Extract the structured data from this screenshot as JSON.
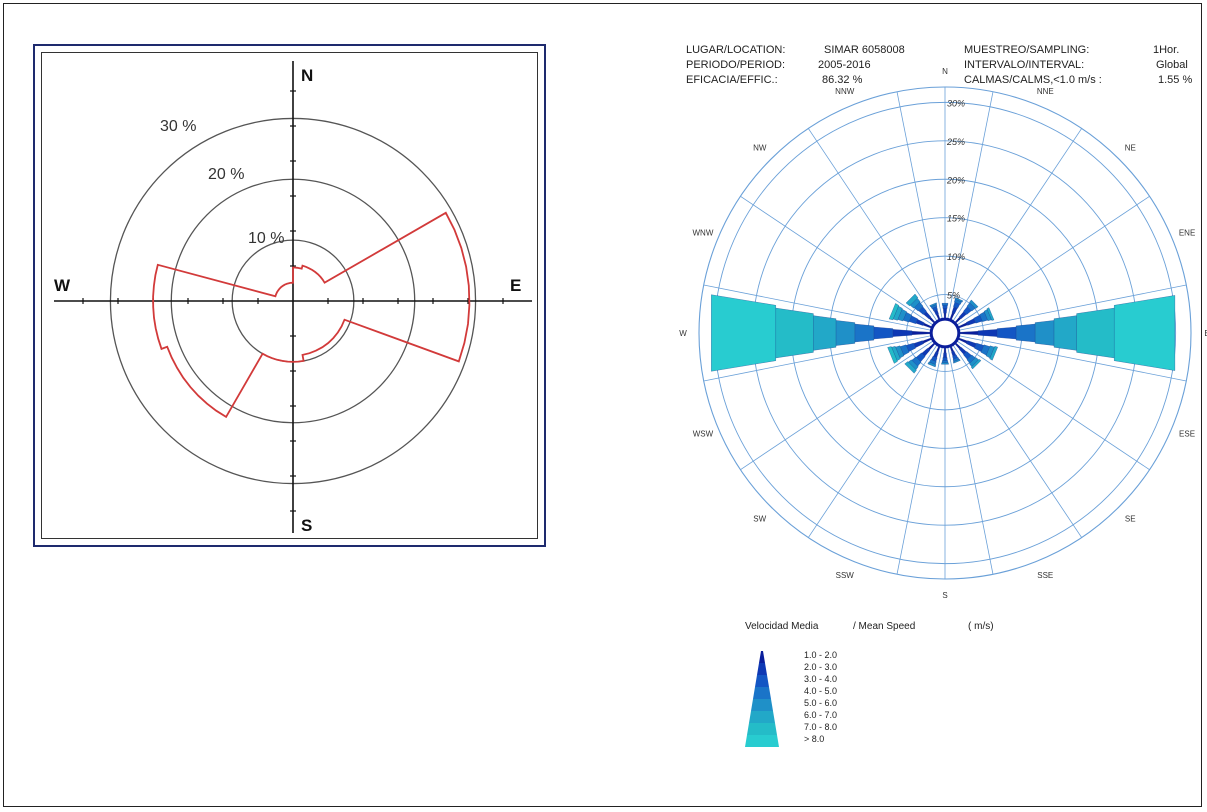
{
  "chart_data": [
    {
      "type": "polar-line",
      "cardinals": [
        "N",
        "E",
        "S",
        "W"
      ],
      "ring_labels": [
        "30 %",
        "20 %",
        "10 %"
      ],
      "ring_values": [
        30,
        20,
        10
      ],
      "rmax": 35,
      "series_color": "#d23a3a",
      "sectors": [
        {
          "from": -20,
          "to": 0,
          "value": 3
        },
        {
          "from": 0,
          "to": 15,
          "value": 5.5
        },
        {
          "from": 15,
          "to": 60,
          "value": 6
        },
        {
          "from": 60,
          "to": 110,
          "value": 29
        },
        {
          "from": 110,
          "to": 170,
          "value": 9
        },
        {
          "from": 170,
          "to": 210,
          "value": 10
        },
        {
          "from": 210,
          "to": 250,
          "value": 22
        },
        {
          "from": 250,
          "to": 285,
          "value": 23
        },
        {
          "from": 285,
          "to": 340,
          "value": 3
        }
      ]
    },
    {
      "type": "wind-rose",
      "directions": [
        "N",
        "NNE",
        "NE",
        "ENE",
        "E",
        "ESE",
        "SE",
        "SSE",
        "S",
        "SSW",
        "SW",
        "WSW",
        "W",
        "WNW",
        "NW",
        "NNW"
      ],
      "ring_labels": [
        "30%",
        "25%",
        "20%",
        "15%",
        "10%",
        "5%"
      ],
      "ring_values": [
        30,
        25,
        20,
        15,
        10,
        5
      ],
      "rmax": 32,
      "calm_radius": 1.8,
      "speed_colors": [
        "#0a1e9c",
        "#0e38b4",
        "#1356c4",
        "#1a74c8",
        "#1f90c8",
        "#22a8c8",
        "#24bcc8",
        "#28ccd0"
      ],
      "bars": [
        [
          0.8,
          0.6,
          0.4,
          0.3,
          0,
          0,
          0,
          0
        ],
        [
          1.0,
          0.8,
          0.6,
          0.4,
          0.2,
          0,
          0,
          0
        ],
        [
          1.0,
          0.9,
          0.8,
          0.6,
          0.4,
          0,
          0,
          0
        ],
        [
          1.3,
          1.1,
          0.9,
          0.7,
          0.5,
          0.3,
          0,
          0
        ],
        [
          2.5,
          2.5,
          2.5,
          2.5,
          2.5,
          3,
          5,
          8
        ],
        [
          1.3,
          1.2,
          1.0,
          0.8,
          0.6,
          0.4,
          0,
          0
        ],
        [
          1.0,
          0.9,
          0.8,
          0.6,
          0.5,
          0.3,
          0,
          0
        ],
        [
          0.8,
          0.6,
          0.4,
          0.3,
          0.2,
          0,
          0,
          0
        ],
        [
          0.8,
          0.6,
          0.4,
          0.3,
          0.2,
          0,
          0,
          0
        ],
        [
          0.9,
          0.7,
          0.5,
          0.4,
          0.3,
          0,
          0,
          0
        ],
        [
          1.2,
          1.0,
          0.9,
          0.7,
          0.5,
          0.5,
          0,
          0
        ],
        [
          1.3,
          1.2,
          1.0,
          0.8,
          0.6,
          0.5,
          0.5,
          0
        ],
        [
          2.5,
          2.5,
          2.5,
          2.5,
          2.5,
          3,
          5,
          8.5
        ],
        [
          1.2,
          1.0,
          0.9,
          0.8,
          0.7,
          0.6,
          0.5,
          0
        ],
        [
          1.0,
          0.9,
          0.8,
          0.7,
          0.6,
          0.6,
          0,
          0
        ],
        [
          0.8,
          0.6,
          0.4,
          0.3,
          0.2,
          0,
          0,
          0
        ]
      ]
    }
  ],
  "header": {
    "location_label": "LUGAR/LOCATION:",
    "location_value": "SIMAR 6058008",
    "period_label": "PERIODO/PERIOD:",
    "period_value": "2005-2016",
    "efficacy_label": "EFICACIA/EFFIC.:",
    "efficacy_value": "86.32 %",
    "sampling_label": "MUESTREO/SAMPLING:",
    "sampling_value": "1Hor.",
    "interval_label": "INTERVALO/INTERVAL:",
    "interval_value": "Global",
    "calms_label": "CALMAS/CALMS,<1.0 m/s   :",
    "calms_value": "1.55 %"
  },
  "legend": {
    "title": "Velocidad Media",
    "title2": "/ Mean Speed",
    "unit": "( m/s)",
    "items": [
      "1.0 -  2.0",
      "2.0 -  3.0",
      "3.0 -  4.0",
      "4.0 -  5.0",
      "5.0 -  6.0",
      "6.0 -  7.0",
      "7.0 -  8.0",
      ">  8.0"
    ]
  }
}
